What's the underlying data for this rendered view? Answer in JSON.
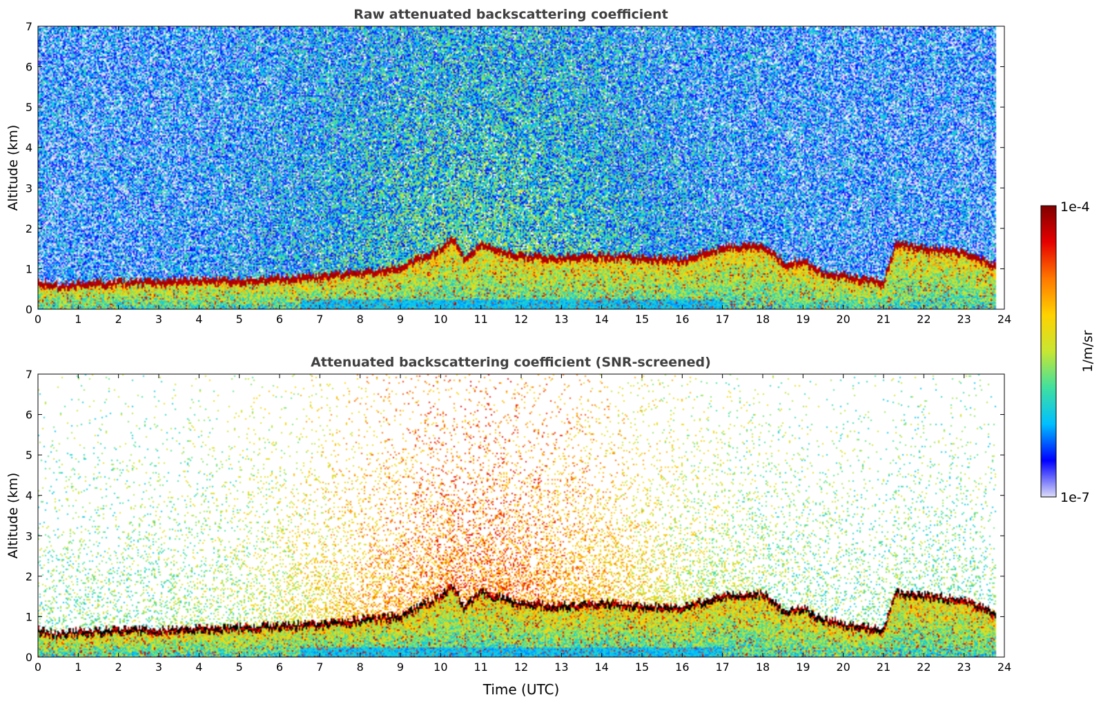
{
  "chart_data": [
    {
      "type": "heatmap",
      "title": "Raw attenuated backscattering coefficient",
      "xlabel": "",
      "ylabel": "Altitude (km)",
      "xlim": [
        0,
        24
      ],
      "ylim": [
        0,
        7
      ],
      "x_ticks": [
        "0",
        "1",
        "2",
        "3",
        "4",
        "5",
        "6",
        "7",
        "8",
        "9",
        "10",
        "11",
        "12",
        "13",
        "14",
        "15",
        "16",
        "17",
        "18",
        "19",
        "20",
        "21",
        "22",
        "23",
        "24"
      ],
      "y_ticks": [
        "0",
        "1",
        "2",
        "3",
        "4",
        "5",
        "6",
        "7"
      ],
      "data_end_hour": 23.8,
      "cloud_top_km": [
        [
          0,
          0.65
        ],
        [
          0.5,
          0.55
        ],
        [
          1,
          0.6
        ],
        [
          2,
          0.65
        ],
        [
          3,
          0.65
        ],
        [
          4,
          0.7
        ],
        [
          5,
          0.7
        ],
        [
          6,
          0.75
        ],
        [
          7,
          0.8
        ],
        [
          8,
          0.9
        ],
        [
          9,
          1.0
        ],
        [
          10,
          1.5
        ],
        [
          10.3,
          1.75
        ],
        [
          10.6,
          1.2
        ],
        [
          11,
          1.6
        ],
        [
          12,
          1.3
        ],
        [
          13,
          1.25
        ],
        [
          14,
          1.3
        ],
        [
          15,
          1.25
        ],
        [
          16,
          1.2
        ],
        [
          17,
          1.5
        ],
        [
          18,
          1.55
        ],
        [
          18.6,
          1.1
        ],
        [
          19,
          1.2
        ],
        [
          19.5,
          0.9
        ],
        [
          20,
          0.8
        ],
        [
          21,
          0.65
        ],
        [
          21.3,
          1.6
        ],
        [
          22,
          1.5
        ],
        [
          23,
          1.4
        ],
        [
          23.8,
          1.05
        ]
      ],
      "raw": true
    },
    {
      "type": "heatmap",
      "title": "Attenuated backscattering coefficient (SNR-screened)",
      "xlabel": "Time (UTC)",
      "ylabel": "Altitude (km)",
      "xlim": [
        0,
        24
      ],
      "ylim": [
        0,
        7
      ],
      "x_ticks": [
        "0",
        "1",
        "2",
        "3",
        "4",
        "5",
        "6",
        "7",
        "8",
        "9",
        "10",
        "11",
        "12",
        "13",
        "14",
        "15",
        "16",
        "17",
        "18",
        "19",
        "20",
        "21",
        "22",
        "23",
        "24"
      ],
      "y_ticks": [
        "0",
        "1",
        "2",
        "3",
        "4",
        "5",
        "6",
        "7"
      ],
      "data_end_hour": 23.8,
      "cloud_top_km": [
        [
          0,
          0.65
        ],
        [
          0.5,
          0.55
        ],
        [
          1,
          0.6
        ],
        [
          2,
          0.65
        ],
        [
          3,
          0.65
        ],
        [
          4,
          0.7
        ],
        [
          5,
          0.7
        ],
        [
          6,
          0.75
        ],
        [
          7,
          0.8
        ],
        [
          8,
          0.9
        ],
        [
          9,
          1.0
        ],
        [
          10,
          1.5
        ],
        [
          10.3,
          1.75
        ],
        [
          10.6,
          1.2
        ],
        [
          11,
          1.6
        ],
        [
          12,
          1.3
        ],
        [
          13,
          1.25
        ],
        [
          14,
          1.3
        ],
        [
          15,
          1.25
        ],
        [
          16,
          1.2
        ],
        [
          17,
          1.5
        ],
        [
          18,
          1.55
        ],
        [
          18.6,
          1.1
        ],
        [
          19,
          1.2
        ],
        [
          19.5,
          0.9
        ],
        [
          20,
          0.8
        ],
        [
          21,
          0.65
        ],
        [
          21.3,
          1.6
        ],
        [
          22,
          1.5
        ],
        [
          23,
          1.4
        ],
        [
          23.8,
          1.05
        ]
      ],
      "raw": false
    }
  ],
  "colorbar": {
    "label": "1/m/sr",
    "max_label": "1e-4",
    "min_label": "1e-7",
    "colormap": "jet",
    "colors": [
      "#dcdcf8",
      "#0000ff",
      "#00bfff",
      "#40e0a0",
      "#c8e632",
      "#ffd200",
      "#ff7800",
      "#e60000",
      "#800000"
    ]
  }
}
